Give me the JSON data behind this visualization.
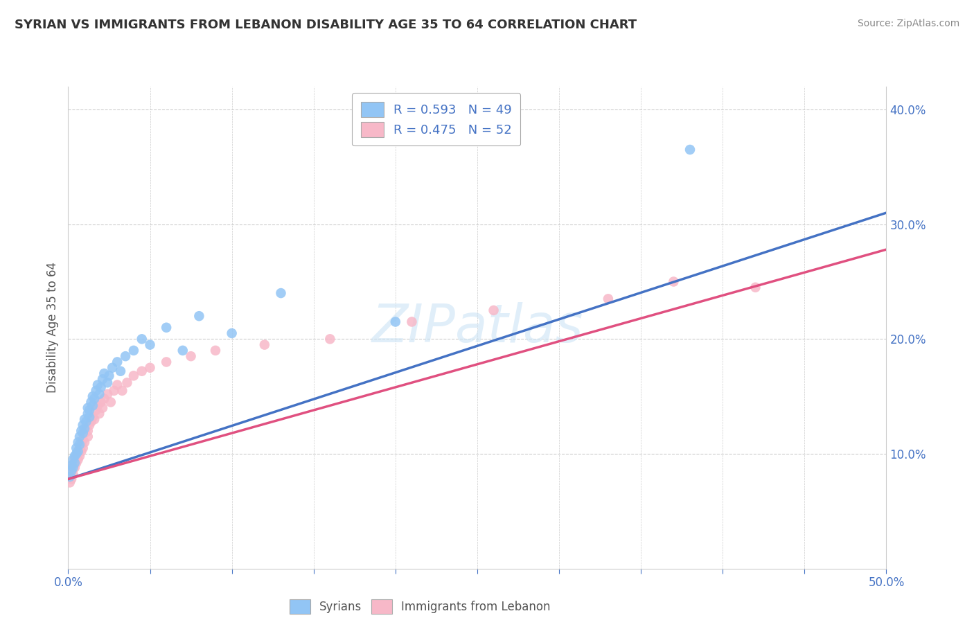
{
  "title": "SYRIAN VS IMMIGRANTS FROM LEBANON DISABILITY AGE 35 TO 64 CORRELATION CHART",
  "source": "Source: ZipAtlas.com",
  "ylabel": "Disability Age 35 to 64",
  "xlim": [
    0.0,
    0.5
  ],
  "ylim": [
    0.0,
    0.42
  ],
  "legend_r1": "R = 0.593   N = 49",
  "legend_r2": "R = 0.475   N = 52",
  "syrians_color": "#92c5f5",
  "lebanon_color": "#f7b8c8",
  "trendline_syrian_color": "#4472c4",
  "trendline_lebanon_color": "#e05080",
  "syrians_x": [
    0.001,
    0.002,
    0.002,
    0.003,
    0.003,
    0.004,
    0.004,
    0.005,
    0.005,
    0.006,
    0.006,
    0.007,
    0.007,
    0.008,
    0.009,
    0.009,
    0.01,
    0.01,
    0.011,
    0.012,
    0.012,
    0.013,
    0.013,
    0.014,
    0.015,
    0.015,
    0.016,
    0.017,
    0.018,
    0.019,
    0.02,
    0.021,
    0.022,
    0.024,
    0.025,
    0.027,
    0.03,
    0.032,
    0.035,
    0.04,
    0.045,
    0.05,
    0.06,
    0.07,
    0.08,
    0.1,
    0.13,
    0.2,
    0.38
  ],
  "syrians_y": [
    0.08,
    0.085,
    0.09,
    0.095,
    0.088,
    0.092,
    0.098,
    0.1,
    0.105,
    0.11,
    0.102,
    0.115,
    0.108,
    0.12,
    0.118,
    0.125,
    0.13,
    0.122,
    0.128,
    0.135,
    0.14,
    0.132,
    0.138,
    0.145,
    0.15,
    0.142,
    0.148,
    0.155,
    0.16,
    0.152,
    0.158,
    0.165,
    0.17,
    0.162,
    0.168,
    0.175,
    0.18,
    0.172,
    0.185,
    0.19,
    0.2,
    0.195,
    0.21,
    0.19,
    0.22,
    0.205,
    0.24,
    0.215,
    0.365
  ],
  "lebanon_x": [
    0.001,
    0.001,
    0.002,
    0.002,
    0.003,
    0.003,
    0.004,
    0.004,
    0.005,
    0.005,
    0.006,
    0.006,
    0.007,
    0.007,
    0.008,
    0.008,
    0.009,
    0.009,
    0.01,
    0.01,
    0.011,
    0.012,
    0.012,
    0.013,
    0.014,
    0.015,
    0.016,
    0.017,
    0.018,
    0.019,
    0.02,
    0.021,
    0.022,
    0.024,
    0.026,
    0.028,
    0.03,
    0.033,
    0.036,
    0.04,
    0.045,
    0.05,
    0.06,
    0.075,
    0.09,
    0.12,
    0.16,
    0.21,
    0.26,
    0.33,
    0.37,
    0.42
  ],
  "lebanon_y": [
    0.075,
    0.08,
    0.085,
    0.078,
    0.09,
    0.082,
    0.095,
    0.088,
    0.098,
    0.092,
    0.1,
    0.095,
    0.105,
    0.098,
    0.108,
    0.102,
    0.112,
    0.105,
    0.118,
    0.11,
    0.122,
    0.115,
    0.12,
    0.125,
    0.128,
    0.132,
    0.13,
    0.138,
    0.142,
    0.135,
    0.145,
    0.14,
    0.148,
    0.152,
    0.145,
    0.155,
    0.16,
    0.155,
    0.162,
    0.168,
    0.172,
    0.175,
    0.18,
    0.185,
    0.19,
    0.195,
    0.2,
    0.215,
    0.225,
    0.235,
    0.25,
    0.245
  ],
  "syrian_trend_x": [
    0.0,
    0.5
  ],
  "syrian_trend_y": [
    0.078,
    0.31
  ],
  "lebanon_trend_x": [
    0.0,
    0.5
  ],
  "lebanon_trend_y": [
    0.078,
    0.278
  ]
}
